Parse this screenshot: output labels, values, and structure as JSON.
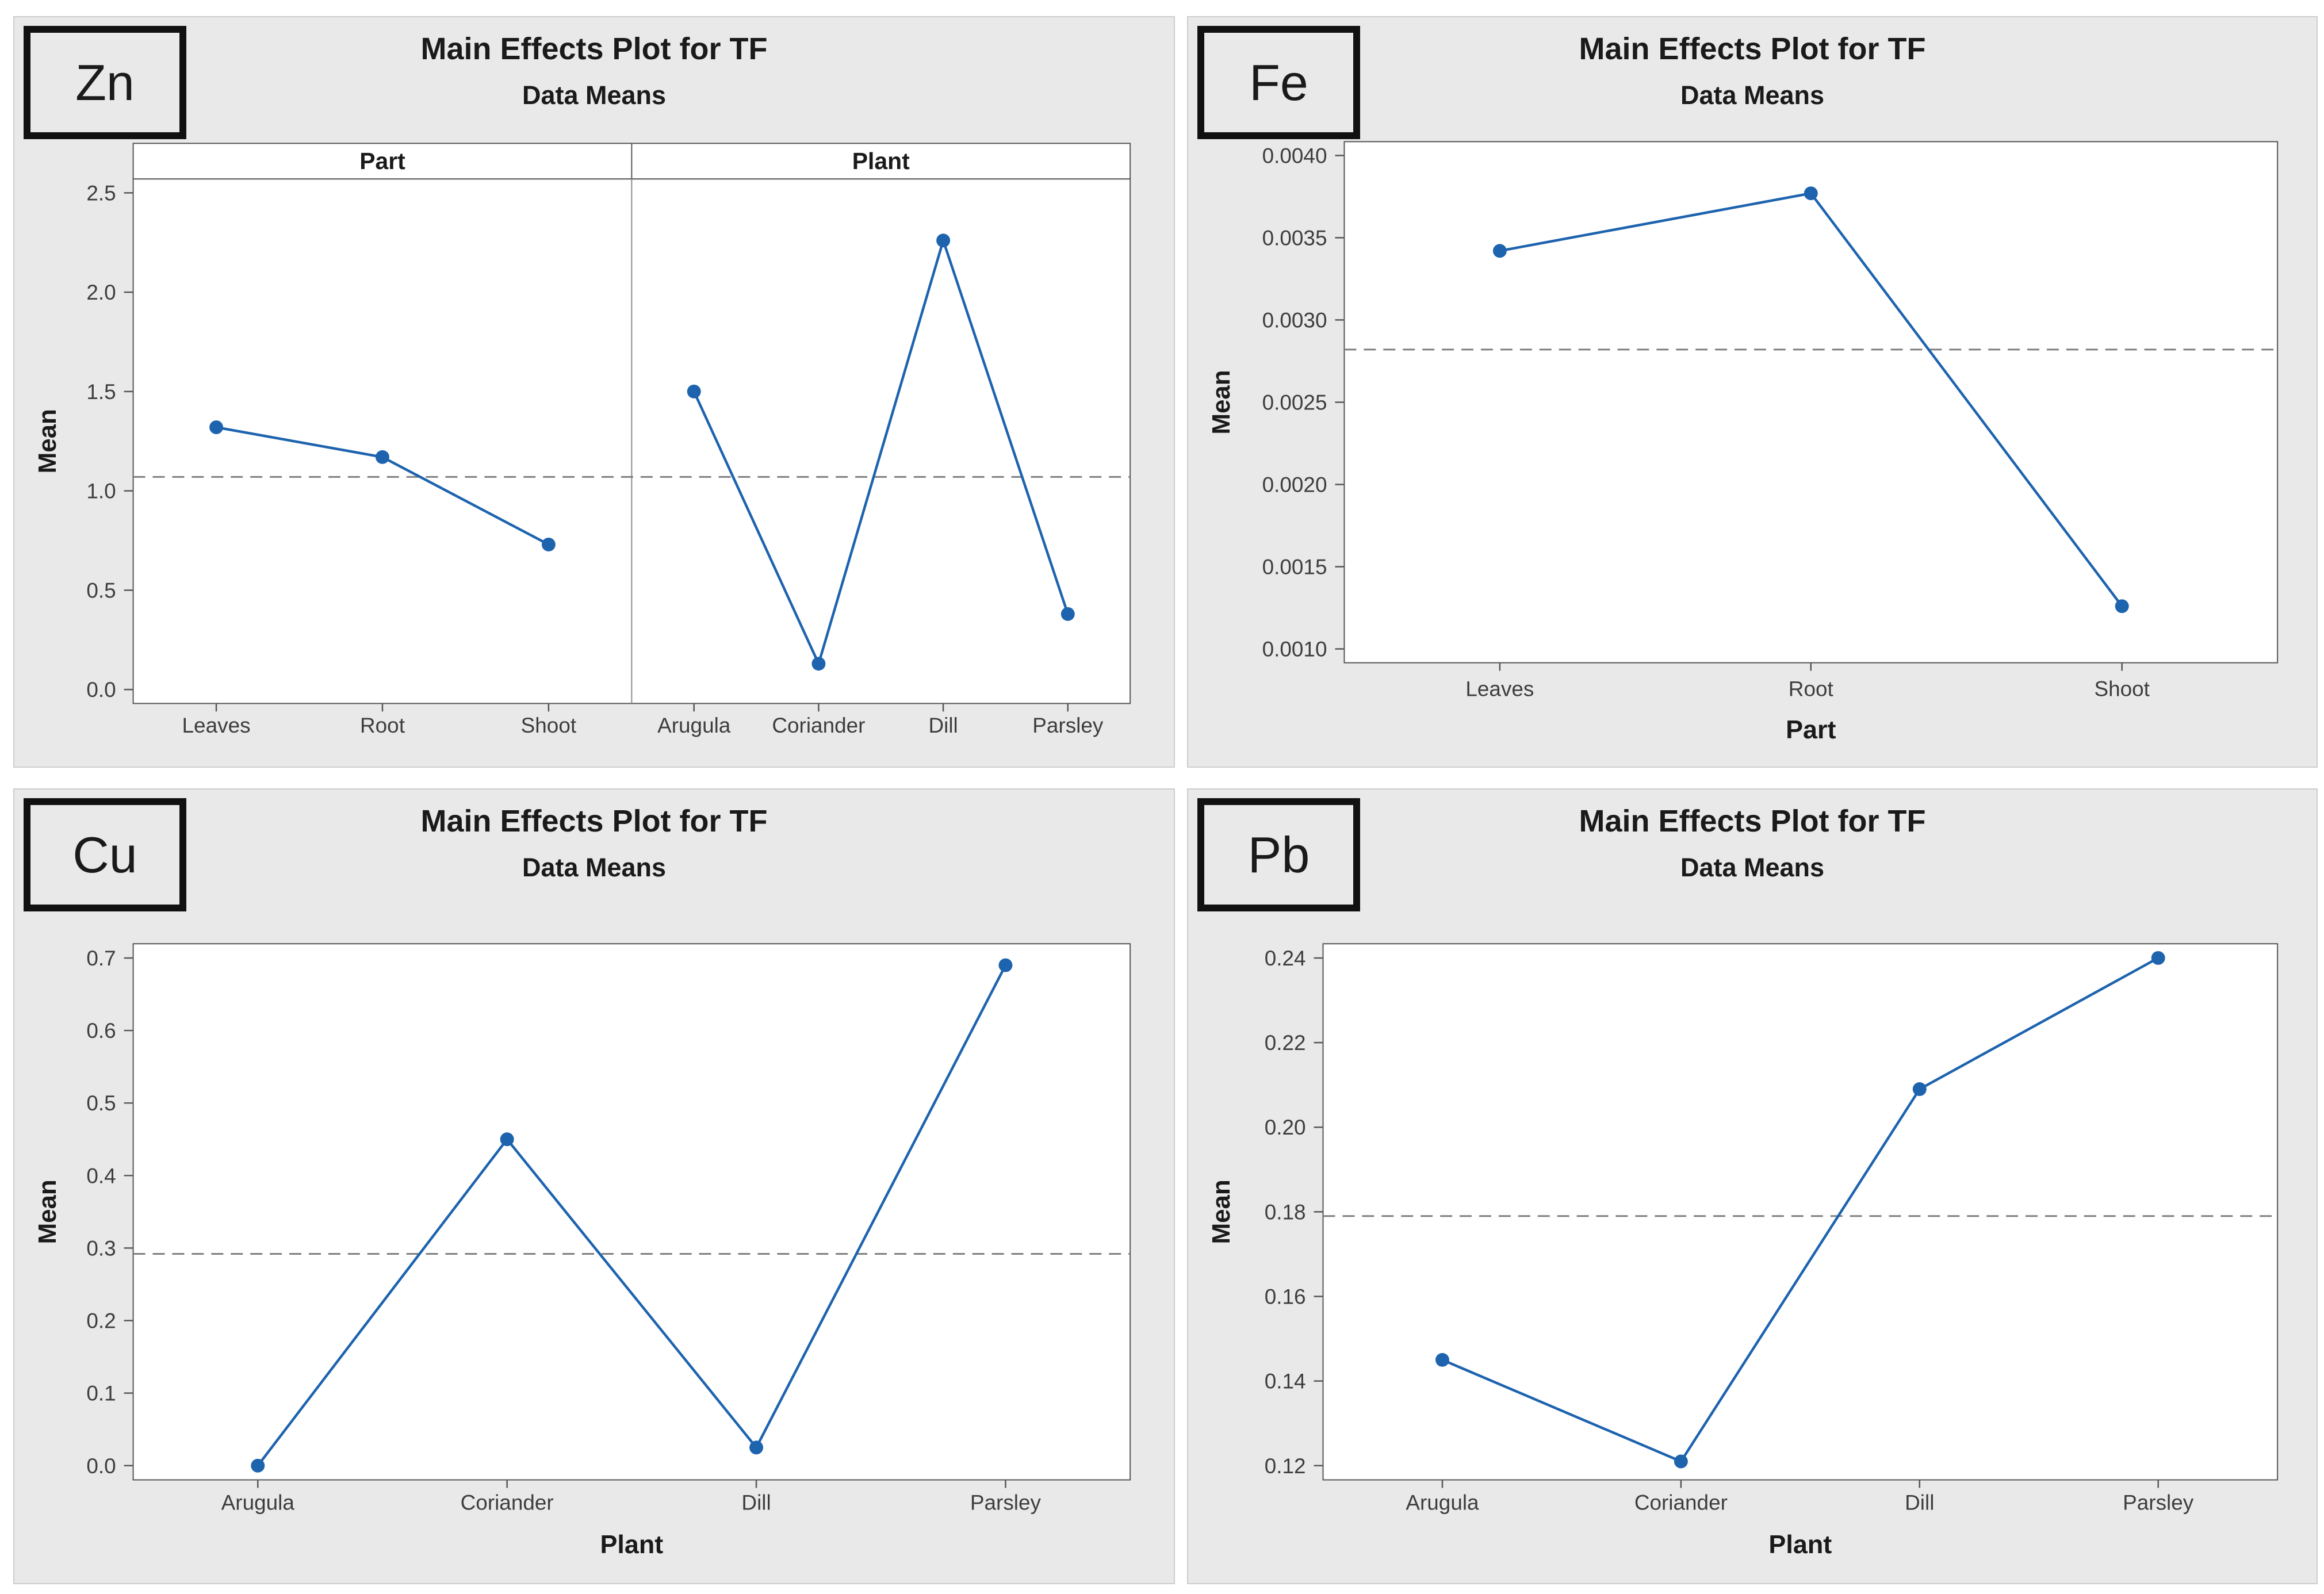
{
  "colors": {
    "accent_blue": "#1d63ae",
    "dashed_gray": "#7f7f7f",
    "frame_gray": "#565656",
    "divider_gray": "#8c8c8c",
    "panel_bg": "#e9e9e9",
    "plot_bg": "#ffffff",
    "text_dark": "#1a1a1a",
    "tick_text": "#3d3d3d",
    "box_border": "#111111",
    "quadrant_edge": "#cdcdcd"
  },
  "chart_data": [
    {
      "id": "zn",
      "type": "line",
      "element": "Zn",
      "title": "Main Effects Plot for TF",
      "subtitle": "Data Means",
      "ylabel": "Mean",
      "xlabel": null,
      "grand_mean": 1.07,
      "yticks": [
        {
          "value": 0.0,
          "label": "0.0"
        },
        {
          "value": 0.5,
          "label": "0.5"
        },
        {
          "value": 1.0,
          "label": "1.0"
        },
        {
          "value": 1.5,
          "label": "1.5"
        },
        {
          "value": 2.0,
          "label": "2.0"
        },
        {
          "value": 2.5,
          "label": "2.5"
        }
      ],
      "panels": [
        {
          "header": "Part",
          "categories": [
            "Leaves",
            "Root",
            "Shoot"
          ],
          "values": [
            1.32,
            1.17,
            0.73
          ]
        },
        {
          "header": "Plant",
          "categories": [
            "Arugula",
            "Coriander",
            "Dill",
            "Parsley"
          ],
          "values": [
            1.5,
            0.13,
            2.26,
            0.38
          ]
        }
      ]
    },
    {
      "id": "fe",
      "type": "line",
      "element": "Fe",
      "title": "Main Effects Plot for TF",
      "subtitle": "Data Means",
      "ylabel": "Mean",
      "xlabel": "Part",
      "grand_mean": 0.00282,
      "yticks": [
        {
          "value": 0.001,
          "label": "0.0010"
        },
        {
          "value": 0.0015,
          "label": "0.0015"
        },
        {
          "value": 0.002,
          "label": "0.0020"
        },
        {
          "value": 0.0025,
          "label": "0.0025"
        },
        {
          "value": 0.003,
          "label": "0.0030"
        },
        {
          "value": 0.0035,
          "label": "0.0035"
        },
        {
          "value": 0.004,
          "label": "0.0040"
        }
      ],
      "panels": [
        {
          "header": null,
          "categories": [
            "Leaves",
            "Root",
            "Shoot"
          ],
          "values": [
            0.00342,
            0.00377,
            0.00126
          ]
        }
      ]
    },
    {
      "id": "cu",
      "type": "line",
      "element": "Cu",
      "title": "Main Effects Plot for TF",
      "subtitle": "Data Means",
      "ylabel": "Mean",
      "xlabel": "Plant",
      "grand_mean": 0.292,
      "yticks": [
        {
          "value": 0.0,
          "label": "0.0"
        },
        {
          "value": 0.1,
          "label": "0.1"
        },
        {
          "value": 0.2,
          "label": "0.2"
        },
        {
          "value": 0.3,
          "label": "0.3"
        },
        {
          "value": 0.4,
          "label": "0.4"
        },
        {
          "value": 0.5,
          "label": "0.5"
        },
        {
          "value": 0.6,
          "label": "0.6"
        },
        {
          "value": 0.7,
          "label": "0.7"
        }
      ],
      "panels": [
        {
          "header": null,
          "categories": [
            "Arugula",
            "Coriander",
            "Dill",
            "Parsley"
          ],
          "values": [
            0.0,
            0.45,
            0.025,
            0.69
          ]
        }
      ]
    },
    {
      "id": "pb",
      "type": "line",
      "element": "Pb",
      "title": "Main Effects Plot for TF",
      "subtitle": "Data Means",
      "ylabel": "Mean",
      "xlabel": "Plant",
      "grand_mean": 0.179,
      "yticks": [
        {
          "value": 0.12,
          "label": "0.12"
        },
        {
          "value": 0.14,
          "label": "0.14"
        },
        {
          "value": 0.16,
          "label": "0.16"
        },
        {
          "value": 0.18,
          "label": "0.18"
        },
        {
          "value": 0.2,
          "label": "0.20"
        },
        {
          "value": 0.22,
          "label": "0.22"
        },
        {
          "value": 0.24,
          "label": "0.24"
        }
      ],
      "panels": [
        {
          "header": null,
          "categories": [
            "Arugula",
            "Coriander",
            "Dill",
            "Parsley"
          ],
          "values": [
            0.145,
            0.121,
            0.209,
            0.24
          ]
        }
      ]
    }
  ]
}
